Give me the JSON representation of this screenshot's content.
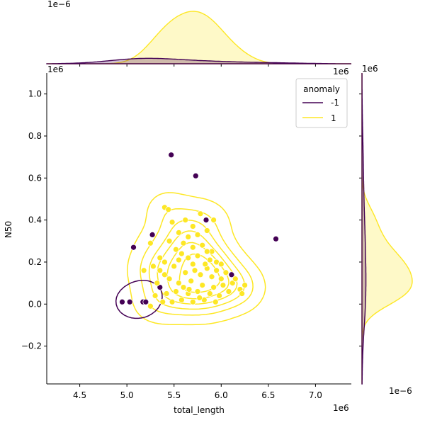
{
  "chart_data": {
    "type": "scatter",
    "subtype": "jointplot-kde",
    "title": "",
    "xlabel": "total_length",
    "ylabel": "N50",
    "x_offset_label": "1e6",
    "y_offset_label": "1e6",
    "top_marginal_offset_label": "1e−6",
    "right_marginal_offset_label": "1e−6",
    "xlim": [
      4.15,
      7.38
    ],
    "ylim": [
      -0.38,
      1.1
    ],
    "xticks": [
      "4.5",
      "5.0",
      "5.5",
      "6.0",
      "6.5",
      "7.0"
    ],
    "yticks": [
      "−0.2",
      "0.0",
      "0.2",
      "0.4",
      "0.6",
      "0.8",
      "1.0"
    ],
    "grid": false,
    "legend": {
      "title": "anomaly",
      "placement": "top-right",
      "entries": [
        "-1",
        "1"
      ]
    },
    "colors": {
      "-1": "#440154",
      "1": "#fde725"
    },
    "series": [
      {
        "name": "-1",
        "points": [
          [
            5.47,
            0.71
          ],
          [
            5.73,
            0.61
          ],
          [
            5.84,
            0.4
          ],
          [
            6.58,
            0.31
          ],
          [
            5.27,
            0.33
          ],
          [
            5.07,
            0.27
          ],
          [
            6.11,
            0.14
          ],
          [
            5.35,
            0.08
          ],
          [
            4.95,
            0.01
          ],
          [
            5.03,
            0.01
          ],
          [
            5.17,
            0.01
          ],
          [
            5.2,
            0.01
          ]
        ]
      },
      {
        "name": "1",
        "points": [
          [
            5.4,
            0.46
          ],
          [
            5.44,
            0.45
          ],
          [
            5.78,
            0.43
          ],
          [
            5.7,
            0.37
          ],
          [
            5.62,
            0.4
          ],
          [
            5.48,
            0.39
          ],
          [
            5.92,
            0.4
          ],
          [
            5.55,
            0.34
          ],
          [
            5.65,
            0.32
          ],
          [
            5.75,
            0.33
          ],
          [
            5.85,
            0.35
          ],
          [
            5.25,
            0.29
          ],
          [
            5.45,
            0.3
          ],
          [
            5.6,
            0.29
          ],
          [
            5.7,
            0.27
          ],
          [
            5.8,
            0.28
          ],
          [
            5.52,
            0.26
          ],
          [
            5.9,
            0.25
          ],
          [
            5.35,
            0.22
          ],
          [
            5.58,
            0.24
          ],
          [
            5.65,
            0.22
          ],
          [
            5.75,
            0.23
          ],
          [
            5.88,
            0.21
          ],
          [
            5.95,
            0.2
          ],
          [
            5.5,
            0.18
          ],
          [
            5.7,
            0.19
          ],
          [
            5.85,
            0.17
          ],
          [
            5.95,
            0.16
          ],
          [
            6.05,
            0.15
          ],
          [
            5.18,
            0.16
          ],
          [
            5.28,
            0.18
          ],
          [
            5.4,
            0.14
          ],
          [
            5.62,
            0.15
          ],
          [
            5.78,
            0.14
          ],
          [
            5.9,
            0.13
          ],
          [
            6.0,
            0.12
          ],
          [
            5.32,
            0.1
          ],
          [
            5.45,
            0.12
          ],
          [
            5.55,
            0.1
          ],
          [
            5.68,
            0.11
          ],
          [
            5.8,
            0.09
          ],
          [
            5.92,
            0.08
          ],
          [
            6.02,
            0.09
          ],
          [
            6.12,
            0.1
          ],
          [
            6.2,
            0.07
          ],
          [
            5.3,
            0.04
          ],
          [
            5.42,
            0.05
          ],
          [
            5.52,
            0.06
          ],
          [
            5.65,
            0.05
          ],
          [
            5.75,
            0.06
          ],
          [
            5.88,
            0.05
          ],
          [
            5.98,
            0.04
          ],
          [
            6.08,
            0.06
          ],
          [
            6.22,
            0.05
          ],
          [
            5.38,
            0.01
          ],
          [
            5.48,
            0.01
          ],
          [
            5.58,
            0.02
          ],
          [
            5.7,
            0.01
          ],
          [
            5.82,
            0.02
          ],
          [
            5.94,
            0.01
          ],
          [
            5.25,
            -0.01
          ],
          [
            5.6,
            0.08
          ],
          [
            5.85,
            0.25
          ],
          [
            6.15,
            0.12
          ],
          [
            5.72,
            0.16
          ],
          [
            6.25,
            0.09
          ],
          [
            6.0,
            0.19
          ],
          [
            5.55,
            0.21
          ],
          [
            5.4,
            0.2
          ],
          [
            5.66,
            0.07
          ],
          [
            5.77,
            0.03
          ],
          [
            5.35,
            0.16
          ],
          [
            5.83,
            0.19
          ]
        ]
      }
    ]
  }
}
